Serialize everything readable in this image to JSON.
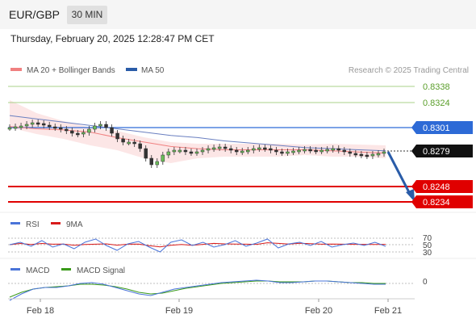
{
  "header": {
    "symbol": "EUR/GBP",
    "timeframe": "30 MIN",
    "datetime": "Thursday, February 20, 2025 12:28:47 PM CET"
  },
  "legend": {
    "ma20_label": "MA 20 + Bollinger Bands",
    "ma50_label": "MA 50",
    "copyright": "Research © 2025 Trading Central",
    "ma20_color": "#f08080",
    "ma50_color": "#2a5ca8"
  },
  "levels": {
    "r2": "0.8338",
    "r1": "0.8324",
    "pivot": "0.8301",
    "last": "0.8279",
    "s1": "0.8248",
    "s2": "0.8234",
    "resistance_color": "#5a9e2a",
    "pivot_color": "#2d6ad6",
    "support_color": "#e00000",
    "last_color": "#111111"
  },
  "rsi": {
    "label": "RSI",
    "ma_label": "9MA",
    "levels": [
      "70",
      "50",
      "30"
    ],
    "rsi_color": "#4a74d9",
    "ma_color": "#d81b1b"
  },
  "macd": {
    "label": "MACD",
    "signal_label": "MACD Signal",
    "zero_label": "0",
    "macd_color": "#4a74d9",
    "signal_color": "#3a9a1a"
  },
  "x_axis": {
    "labels": [
      "Feb 18",
      "Feb 19",
      "Feb 20",
      "Feb 21"
    ]
  },
  "chart_data": {
    "type": "line",
    "title": "",
    "series": [
      {
        "name": "MA 50",
        "values": [
          0.8312,
          0.8309,
          0.8306,
          0.8303,
          0.83,
          0.8297,
          0.8294,
          0.8292,
          0.8289,
          0.8287,
          0.8285,
          0.8283,
          0.8282,
          0.8281,
          0.828
        ]
      },
      {
        "name": "MA 20 + Bollinger Bands",
        "values": [
          0.8302,
          0.83,
          0.8299,
          0.8297,
          0.8292,
          0.8288,
          0.8284,
          0.8282,
          0.8281,
          0.8281,
          0.8281,
          0.8281,
          0.828,
          0.8279,
          0.8278
        ]
      }
    ],
    "levels": {
      "r2": 0.8338,
      "r1": 0.8324,
      "pivot": 0.8301,
      "last": 0.8279,
      "s1": 0.8248,
      "s2": 0.8234
    },
    "ylim": [
      0.8225,
      0.8345
    ],
    "xlabel": "",
    "ylabel": ""
  }
}
